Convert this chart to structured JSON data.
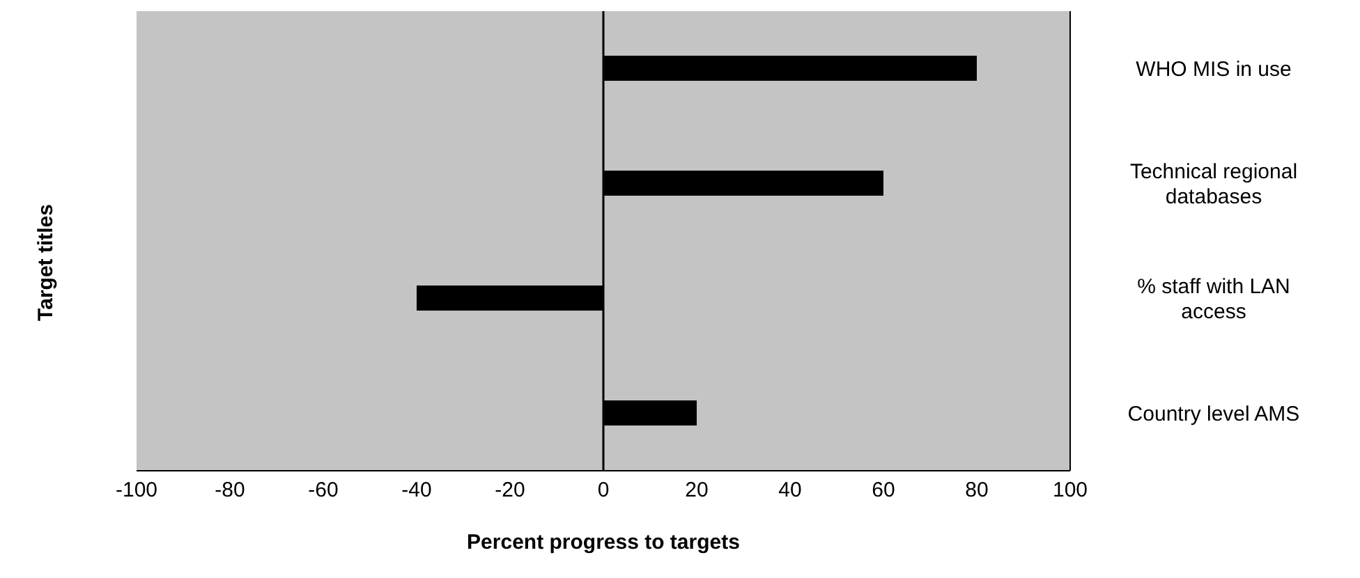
{
  "chart_data": {
    "type": "bar",
    "orientation": "horizontal",
    "xlabel": "Percent progress to targets",
    "ylabel": "Target titles",
    "categories": [
      "WHO MIS in use",
      "Technical regional databases",
      "% staff with LAN access",
      "Country level AMS"
    ],
    "values": [
      80,
      60,
      -40,
      20
    ],
    "color": "#000000",
    "xlim": [
      -100,
      100
    ],
    "xticks": [
      -100,
      -80,
      -60,
      -40,
      -20,
      0,
      20,
      40,
      60,
      80,
      100
    ],
    "ref_lines": [
      {
        "axis": "x",
        "value": 0
      }
    ],
    "grid": false,
    "legend": false
  }
}
